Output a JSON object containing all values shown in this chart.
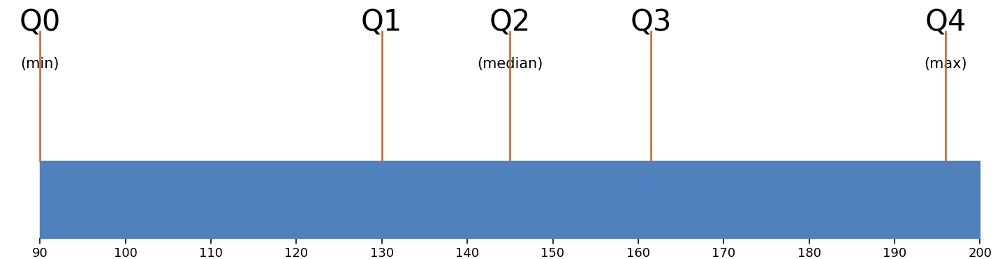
{
  "five_number_summary": [
    90,
    130,
    145,
    161.5,
    196
  ],
  "labels": [
    "Q0",
    "Q1",
    "Q2",
    "Q3",
    "Q4"
  ],
  "sublabels": [
    "(min)",
    "",
    "(median)",
    "",
    "(max)"
  ],
  "xmin": 90,
  "xmax": 200,
  "xticks": [
    90,
    100,
    110,
    120,
    130,
    140,
    150,
    160,
    170,
    180,
    190,
    200
  ],
  "bar_color": "#4f81bd",
  "line_color": "#c8602a",
  "background_color": "#ffffff",
  "label_fontsize": 30,
  "sublabel_fontsize": 15,
  "tick_fontsize": 13
}
